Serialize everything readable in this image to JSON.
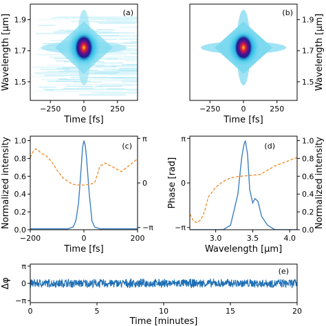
{
  "colors": {
    "intensity_line": "#3b7fc0",
    "phase_line": "#f28e2b",
    "stability_trace": "#1f6fb4",
    "map_low": "#d7f4fa",
    "map_mid": "#2bb7e0",
    "map_core": "#1b1b8f",
    "map_peak": "#e8202b",
    "map_hot": "#ffd21a"
  },
  "chart_data": [
    {
      "id": "a",
      "type": "heatmap",
      "panel_label": "(a)",
      "xlabel": "Time [fs]",
      "ylabel": "Wavelength [μm]",
      "xlim": [
        -400,
        400
      ],
      "ylim": [
        1.38,
        2.0
      ],
      "xticks": [
        "−250",
        "0",
        "250"
      ],
      "yticks": [
        "1.5",
        "1.7",
        "1.9"
      ],
      "peak": {
        "time_fs": 0,
        "wavelength_um": 1.72
      },
      "background": "noisy",
      "axis_sides": {
        "y": "left"
      }
    },
    {
      "id": "b",
      "type": "heatmap",
      "panel_label": "(b)",
      "xlabel": "Time [fs]",
      "ylabel": "Wavelength [μm]",
      "xlim": [
        -400,
        400
      ],
      "ylim": [
        1.38,
        2.0
      ],
      "xticks": [
        "−250",
        "0",
        "250"
      ],
      "yticks": [
        "1.5",
        "1.7",
        "1.9"
      ],
      "peak": {
        "time_fs": 0,
        "wavelength_um": 1.72
      },
      "background": "clean",
      "axis_sides": {
        "y": "right"
      }
    },
    {
      "id": "c",
      "type": "line",
      "panel_label": "(c)",
      "xlabel": "Time [fs]",
      "ylabel_left": "Normalized intensity",
      "xlim": [
        -200,
        200
      ],
      "ylim_left": [
        0,
        1.05
      ],
      "ylim_right": [
        -3.3,
        3.3
      ],
      "xticks": [
        "−200",
        "0",
        "200"
      ],
      "yticks_left": [
        "0.0",
        "0.2",
        "0.4",
        "0.6",
        "0.8",
        "1.0"
      ],
      "yticks_right": [
        "−π",
        "0",
        "π"
      ],
      "series": [
        {
          "role": "intensity",
          "style": "solid",
          "x": [
            -200,
            -60,
            -40,
            -30,
            -20,
            -10,
            -5,
            0,
            5,
            10,
            20,
            30,
            40,
            60,
            200
          ],
          "y": [
            0.01,
            0.01,
            0.03,
            0.1,
            0.3,
            0.7,
            0.92,
            1.0,
            0.95,
            0.8,
            0.4,
            0.1,
            0.03,
            0.01,
            0.01
          ]
        },
        {
          "role": "phase",
          "style": "dashed",
          "x": [
            -200,
            -190,
            -180,
            -170,
            -160,
            -140,
            -120,
            -100,
            -80,
            -60,
            -40,
            -20,
            0,
            20,
            40,
            60,
            80,
            100,
            120,
            140,
            160,
            180,
            200
          ],
          "y": [
            1.8,
            2.2,
            2.4,
            2.3,
            2.1,
            1.9,
            1.5,
            0.9,
            0.4,
            0.1,
            -0.1,
            -0.15,
            -0.15,
            -0.1,
            0.0,
            1.2,
            1.4,
            1.2,
            1.0,
            0.8,
            1.1,
            1.4,
            1.7
          ]
        }
      ]
    },
    {
      "id": "d",
      "type": "line",
      "panel_label": "(d)",
      "xlabel": "Wavelength [μm]",
      "ylabel_left": "Phase [rad]",
      "ylabel_right": "Normalized intensity",
      "xlim": [
        2.65,
        4.1
      ],
      "ylim_left": [
        -3.3,
        3.3
      ],
      "ylim_right": [
        0,
        1.05
      ],
      "xticks": [
        "3.0",
        "3.5",
        "4.0"
      ],
      "yticks_left": [
        "−π",
        "0",
        "π"
      ],
      "yticks_right": [
        "0.0",
        "0.2",
        "0.4",
        "0.6",
        "0.8",
        "1.0"
      ],
      "series": [
        {
          "role": "intensity",
          "style": "solid",
          "x": [
            2.65,
            3.1,
            3.2,
            3.3,
            3.35,
            3.38,
            3.4,
            3.43,
            3.46,
            3.5,
            3.53,
            3.57,
            3.62,
            3.7,
            3.8,
            4.1
          ],
          "y": [
            0.0,
            0.0,
            0.05,
            0.4,
            0.8,
            0.95,
            1.0,
            0.85,
            0.45,
            0.3,
            0.35,
            0.32,
            0.15,
            0.05,
            0.0,
            0.0
          ]
        },
        {
          "role": "phase",
          "style": "dashed",
          "x": [
            2.65,
            2.7,
            2.75,
            2.8,
            2.85,
            2.9,
            3.0,
            3.1,
            3.2,
            3.3,
            3.4,
            3.5,
            3.6,
            3.7,
            3.8,
            3.9,
            4.0,
            4.1
          ],
          "y": [
            -2.2,
            -2.7,
            -2.8,
            -2.6,
            -2.0,
            -1.0,
            -0.3,
            0.1,
            0.35,
            0.45,
            0.5,
            0.55,
            0.6,
            0.9,
            1.2,
            1.4,
            1.6,
            1.8
          ]
        }
      ]
    },
    {
      "id": "e",
      "type": "line",
      "panel_label": "(e)",
      "xlabel": "Time [minutes]",
      "ylabel": "Δφ",
      "xlim": [
        0,
        20
      ],
      "ylim": [
        -3.5,
        3.5
      ],
      "xticks": [
        "0",
        "5",
        "10",
        "15",
        "20"
      ],
      "yticks": [
        "−π",
        "0",
        "π"
      ],
      "series": [
        {
          "role": "phase-difference",
          "style": "solid",
          "x": [
            0,
            20
          ],
          "y": [
            0,
            0
          ],
          "noise_amplitude_rad": 0.9
        }
      ]
    }
  ]
}
